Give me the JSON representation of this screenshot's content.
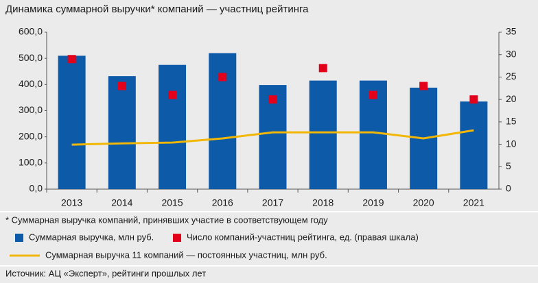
{
  "chart_data": {
    "type": "bar",
    "title": "Динамика суммарной выручки* компаний — участниц рейтинга",
    "categories": [
      "2013",
      "2014",
      "2015",
      "2016",
      "2017",
      "2018",
      "2019",
      "2020",
      "2021"
    ],
    "series": [
      {
        "name": "Суммарная выручка, млн руб.",
        "type": "bar",
        "color": "#0d5aa8",
        "values": [
          510,
          432,
          475,
          520,
          398,
          415,
          415,
          388,
          335
        ]
      },
      {
        "name": "Число компаний-участниц рейтинга, ед. (правая шкала)",
        "type": "scatter",
        "axis": "y2",
        "color": "#e2001a",
        "values": [
          29,
          23,
          21,
          25,
          20,
          27,
          21,
          23,
          20
        ]
      },
      {
        "name": "Суммарная выручка 11 компаний — постоянных участниц, млн руб.",
        "type": "line",
        "color": "#f2b705",
        "values": [
          170,
          175,
          178,
          194,
          217,
          217,
          217,
          194,
          225
        ]
      }
    ],
    "ylim": [
      0,
      600
    ],
    "yticks": [
      {
        "value": 0,
        "label": "0,0"
      },
      {
        "value": 100,
        "label": "100,0"
      },
      {
        "value": 200,
        "label": "200,0"
      },
      {
        "value": 300,
        "label": "300,0"
      },
      {
        "value": 400,
        "label": "400,0"
      },
      {
        "value": 500,
        "label": "500,0"
      },
      {
        "value": 600,
        "label": "600,0"
      }
    ],
    "y2lim": [
      0,
      35
    ],
    "y2ticks": [
      0,
      5,
      10,
      15,
      20,
      25,
      30,
      35
    ],
    "grid": false,
    "footnote": "* Суммарная выручка компаний, принявших участие в соответствующем году",
    "source": "Источник: АЦ «Эксперт», рейтинги прошлых лет"
  }
}
